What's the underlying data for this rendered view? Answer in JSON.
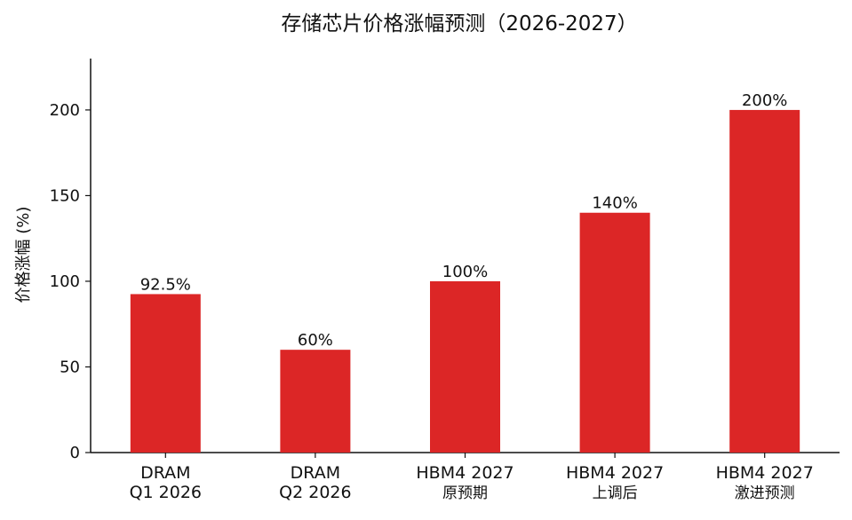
{
  "chart_data": {
    "type": "bar",
    "title": "存储芯片价格涨幅预测（2026-2027）",
    "xlabel": "",
    "ylabel": "价格涨幅 (%)",
    "categories": [
      [
        "DRAM",
        "Q1 2026"
      ],
      [
        "DRAM",
        "Q2 2026"
      ],
      [
        "HBM4 2027",
        "原预期"
      ],
      [
        "HBM4 2027",
        "上调后"
      ],
      [
        "HBM4 2027",
        "激进预测"
      ]
    ],
    "values": [
      92.5,
      60,
      100,
      140,
      200
    ],
    "data_labels": [
      "92.5%",
      "60%",
      "100%",
      "140%",
      "200%"
    ],
    "ylim": [
      0,
      230
    ],
    "yticks": [
      0,
      50,
      100,
      150,
      200
    ],
    "grid": false,
    "bar_color": "#dc2626",
    "axis_color": "#111111"
  }
}
